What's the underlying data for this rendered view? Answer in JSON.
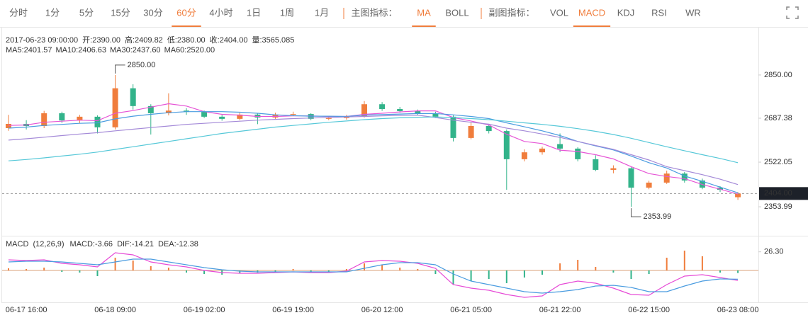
{
  "toolbar": {
    "periods": [
      {
        "label": "分时"
      },
      {
        "label": "1分"
      },
      {
        "label": "5分"
      },
      {
        "label": "15分"
      },
      {
        "label": "30分"
      },
      {
        "label": "60分",
        "active": true
      },
      {
        "label": "4小时"
      },
      {
        "label": "1日"
      },
      {
        "label": "1周"
      },
      {
        "label": "1月"
      }
    ],
    "main_label": "主图指标：",
    "main_indicators": [
      {
        "label": "MA",
        "active": true
      },
      {
        "label": "BOLL"
      }
    ],
    "sub_label": "副图指标：",
    "sub_indicators": [
      {
        "label": "VOL"
      },
      {
        "label": "MACD",
        "active": true
      },
      {
        "label": "KDJ"
      },
      {
        "label": "RSI"
      },
      {
        "label": "WR"
      }
    ]
  },
  "chart_data": [
    {
      "type": "candlestick",
      "info": [
        "2017-06-23 09:00:00",
        "开:2390.00",
        "高:2409.82",
        "低:2380.00",
        "收:2404.00",
        "量:3565.085"
      ],
      "categories": [
        null,
        "06-17 16:00",
        null,
        null,
        null,
        null,
        "06-18 09:00",
        null,
        null,
        null,
        null,
        "06-19 02:00",
        null,
        null,
        null,
        null,
        "06-19 19:00",
        null,
        null,
        null,
        null,
        "06-20 12:00",
        null,
        null,
        null,
        null,
        "06-21 05:00",
        null,
        null,
        null,
        null,
        "06-21 22:00",
        null,
        null,
        null,
        null,
        "06-22 15:00",
        null,
        null,
        null,
        null,
        "06-23 08:00"
      ],
      "open": [
        2650,
        2666,
        2658,
        2706,
        2679,
        2693,
        2653,
        2800,
        2733,
        2706,
        2716,
        2711,
        2693,
        2685,
        2701,
        2690,
        2701,
        2703,
        2685,
        2688,
        2693,
        2740,
        2722,
        2714,
        2706,
        2693,
        2613,
        2658,
        2639,
        2533,
        2559,
        2590,
        2573,
        2533,
        2493,
        2499,
        2426,
        2445,
        2479,
        2453,
        2426,
        2390
      ],
      "high": [
        2700,
        2680,
        2715,
        2712,
        2700,
        2698,
        2850,
        2815,
        2740,
        2781,
        2725,
        2716,
        2700,
        2708,
        2705,
        2708,
        2712,
        2706,
        2695,
        2700,
        2752,
        2748,
        2730,
        2720,
        2712,
        2698,
        2670,
        2665,
        2645,
        2570,
        2580,
        2630,
        2578,
        2548,
        2510,
        2503,
        2452,
        2490,
        2485,
        2460,
        2432,
        2409.82
      ],
      "low": [
        2640,
        2645,
        2650,
        2670,
        2668,
        2630,
        2645,
        2720,
        2626,
        2698,
        2700,
        2688,
        2678,
        2680,
        2665,
        2685,
        2695,
        2680,
        2680,
        2682,
        2690,
        2715,
        2708,
        2700,
        2688,
        2600,
        2608,
        2630,
        2418,
        2525,
        2550,
        2560,
        2525,
        2488,
        2480,
        2353.99,
        2420,
        2440,
        2445,
        2420,
        2410,
        2380
      ],
      "close": [
        2666,
        2658,
        2706,
        2679,
        2693,
        2653,
        2800,
        2733,
        2706,
        2716,
        2711,
        2693,
        2685,
        2701,
        2690,
        2701,
        2703,
        2685,
        2688,
        2693,
        2740,
        2722,
        2714,
        2706,
        2693,
        2613,
        2658,
        2639,
        2533,
        2559,
        2573,
        2573,
        2533,
        2493,
        2499,
        2426,
        2445,
        2479,
        2453,
        2426,
        2418,
        2404
      ],
      "up_color": "#f07d3c",
      "down_color": "#32b38a",
      "series": [
        {
          "name": "MA5:2401.57",
          "color": "#e655d6",
          "values": [
            2660,
            2662,
            2672,
            2676,
            2680,
            2678,
            2706,
            2716,
            2729,
            2742,
            2733,
            2712,
            2702,
            2699,
            2694,
            2694,
            2696,
            2696,
            2694,
            2694,
            2702,
            2706,
            2711,
            2715,
            2715,
            2690,
            2677,
            2662,
            2627,
            2600,
            2592,
            2567,
            2562,
            2550,
            2534,
            2505,
            2479,
            2468,
            2460,
            2438,
            2420,
            2401.57
          ]
        },
        {
          "name": "MA10:2406.63",
          "color": "#4a9ce0",
          "values": [
            2650,
            2654,
            2660,
            2664,
            2668,
            2670,
            2685,
            2695,
            2702,
            2708,
            2712,
            2712,
            2712,
            2710,
            2706,
            2700,
            2697,
            2695,
            2695,
            2694,
            2699,
            2701,
            2703,
            2705,
            2705,
            2700,
            2694,
            2686,
            2670,
            2655,
            2640,
            2622,
            2600,
            2583,
            2568,
            2545,
            2520,
            2500,
            2470,
            2450,
            2428,
            2406.63
          ]
        },
        {
          "name": "MA30:2437.60",
          "color": "#a48ad8",
          "values": [
            2605,
            2610,
            2616,
            2622,
            2628,
            2633,
            2640,
            2646,
            2652,
            2658,
            2664,
            2668,
            2672,
            2676,
            2680,
            2683,
            2686,
            2688,
            2690,
            2692,
            2694,
            2696,
            2698,
            2699,
            2690,
            2680,
            2672,
            2665,
            2650,
            2640,
            2628,
            2615,
            2600,
            2585,
            2570,
            2550,
            2530,
            2505,
            2490,
            2475,
            2458,
            2437.6
          ]
        },
        {
          "name": "MA60:2520.00",
          "color": "#56c8d8",
          "values": [
            2527,
            2532,
            2538,
            2545,
            2552,
            2560,
            2570,
            2580,
            2590,
            2600,
            2610,
            2620,
            2630,
            2638,
            2646,
            2654,
            2660,
            2666,
            2672,
            2677,
            2682,
            2686,
            2689,
            2691,
            2692,
            2690,
            2686,
            2682,
            2676,
            2670,
            2664,
            2657,
            2648,
            2638,
            2626,
            2612,
            2596,
            2580,
            2565,
            2550,
            2536,
            2520
          ]
        }
      ],
      "ylim": [
        2253,
        3031
      ],
      "yticks": [
        {
          "value": 2850,
          "label": "2850.00"
        },
        {
          "value": 2687.38,
          "label": "2687.38"
        },
        {
          "value": 2522.05,
          "label": "2522.05"
        },
        {
          "value": 2353.99,
          "label": "2353.99"
        }
      ],
      "last_price": {
        "value": 2404,
        "label": "2404.00"
      },
      "annotations": [
        {
          "value": 2850,
          "label": "2850.00",
          "side": "high"
        },
        {
          "value": 2353.99,
          "label": "2353.99",
          "side": "low"
        }
      ]
    },
    {
      "type": "macd",
      "title": "MACD  (12,26,9)",
      "up_color": "#f07d3c",
      "down_color": "#32b38a",
      "series": [
        {
          "name": "MACD:-3.66",
          "color": "#f07d3c",
          "kind": "bar",
          "values": [
            3,
            2,
            4,
            -2,
            -3,
            -8,
            18,
            14,
            6,
            4,
            -3,
            -5,
            -6,
            -4,
            -3,
            -2,
            2,
            -3,
            -2,
            2,
            10,
            8,
            4,
            2,
            -5,
            -20,
            -15,
            -12,
            -18,
            -10,
            -6,
            10,
            15,
            5,
            -3,
            -12,
            -5,
            18,
            28,
            20,
            -3,
            -3.66
          ]
        },
        {
          "name": "DIF:-14.21",
          "color": "#e64ad6",
          "kind": "line",
          "values": [
            15,
            14,
            15,
            10,
            8,
            5,
            25,
            22,
            12,
            8,
            5,
            0,
            -3,
            -4,
            -4,
            -3,
            -2,
            -3,
            -3,
            -1,
            12,
            14,
            13,
            10,
            3,
            -20,
            -25,
            -28,
            -34,
            -38,
            -36,
            -20,
            -15,
            -18,
            -25,
            -34,
            -35,
            -20,
            -8,
            -6,
            -10,
            -14.21
          ]
        },
        {
          "name": "DEA:-12.38",
          "color": "#4a9ce0",
          "kind": "line",
          "values": [
            12,
            13,
            13,
            12,
            10,
            8,
            12,
            16,
            16,
            12,
            8,
            4,
            1,
            -1,
            -2,
            -2,
            -2,
            -2,
            -2,
            -2,
            3,
            8,
            11,
            11,
            8,
            -5,
            -15,
            -20,
            -25,
            -30,
            -32,
            -30,
            -27,
            -22,
            -21,
            -24,
            -30,
            -30,
            -22,
            -15,
            -12,
            -12.38
          ]
        }
      ],
      "ylim": [
        -46,
        46
      ],
      "yticks": [
        {
          "value": 26.3,
          "label": "26.30"
        }
      ]
    }
  ]
}
